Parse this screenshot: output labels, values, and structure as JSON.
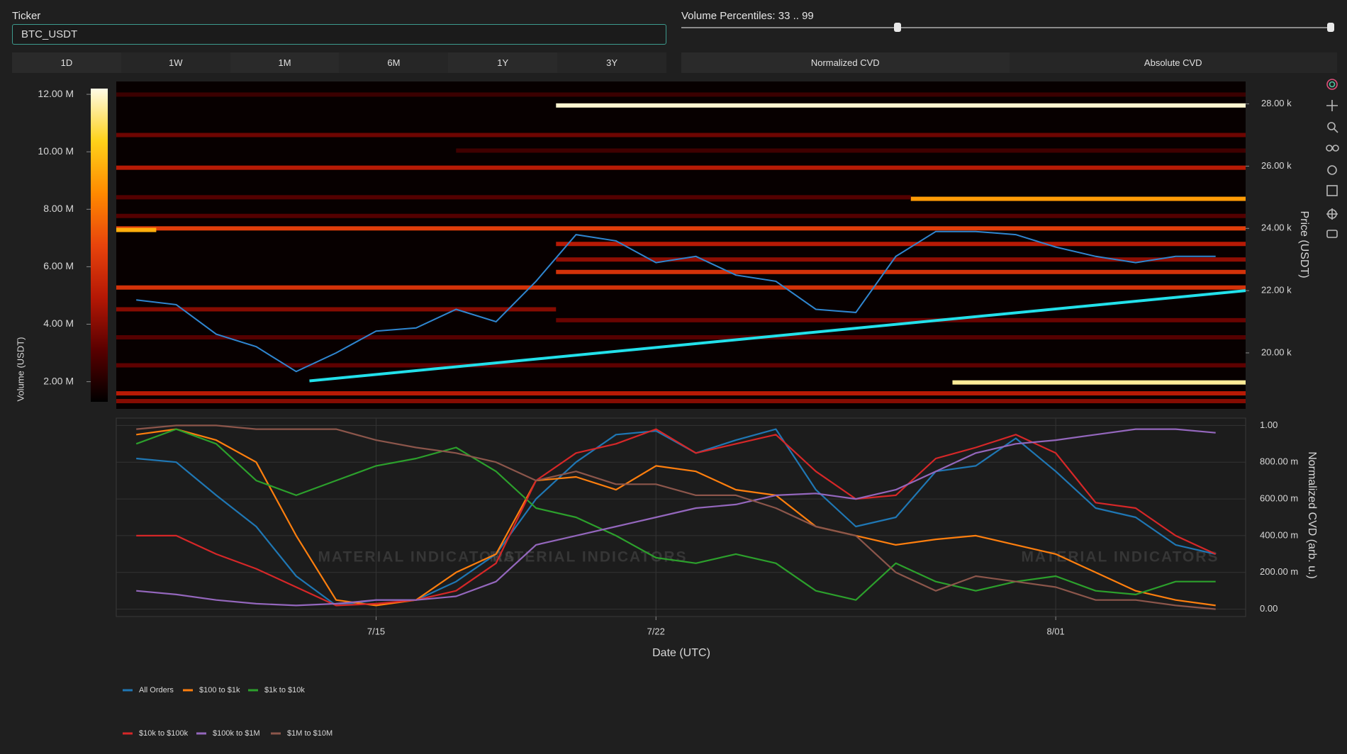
{
  "controls": {
    "ticker_label": "Ticker",
    "ticker_value": "BTC_USDT",
    "ranges": [
      "1D",
      "1W",
      "1M",
      "6M",
      "1Y",
      "3Y"
    ],
    "slider": {
      "label": "Volume Percentiles: 33 .. 99",
      "values": [
        33,
        99
      ],
      "range": [
        0,
        99
      ]
    },
    "modes": [
      "Normalized CVD",
      "Absolute CVD"
    ]
  },
  "watermark": "MATERIAL INDICATORS",
  "chart_data": [
    {
      "type": "heatmap",
      "xlim": [
        "7/08 12:00",
        "8/05 18:00"
      ],
      "ylim": [
        18200,
        28720
      ],
      "yticks": [
        {
          "value": 20000,
          "label": "20.00 k"
        },
        {
          "value": 22000,
          "label": "22.00 k"
        },
        {
          "value": 24000,
          "label": "24.00 k"
        },
        {
          "value": 26000,
          "label": "26.00 k"
        },
        {
          "value": 28000,
          "label": "28.00 k"
        }
      ],
      "y_label": "Price (USDT)",
      "colorbar": {
        "label": "Volume (USDT)",
        "lim": [
          1300000,
          12200000
        ],
        "ticks": [
          {
            "value": 2000000,
            "label": "2.00 M"
          },
          {
            "value": 4000000,
            "label": "4.00 M"
          },
          {
            "value": 6000000,
            "label": "6.00 M"
          },
          {
            "value": 8000000,
            "label": "8.00 M"
          },
          {
            "value": 10000000,
            "label": "10.00 M"
          },
          {
            "value": 12000000,
            "label": "12.00 M"
          }
        ]
      },
      "colorscale": [
        "#000000",
        "#5a0000",
        "#b51805",
        "#e8440c",
        "#ff8a00",
        "#ffd21a",
        "#fffbe6"
      ],
      "bands": [
        {
          "price": 27950,
          "from": "7/19 12:00",
          "to": "8/05 18:00",
          "volume": 12000000
        },
        {
          "price": 19050,
          "from": "7/29 10:00",
          "to": "8/05 18:00",
          "volume": 11500000
        },
        {
          "price": 24950,
          "from": "7/28 09:00",
          "to": "8/05 18:00",
          "volume": 9000000
        },
        {
          "price": 24000,
          "from": "7/08 12:00",
          "to": "8/05 18:00",
          "volume": 6500000
        },
        {
          "price": 25950,
          "from": "7/08 12:00",
          "to": "8/05 18:00",
          "volume": 5000000
        },
        {
          "price": 22100,
          "from": "7/08 12:00",
          "to": "8/05 18:00",
          "volume": 6000000
        },
        {
          "price": 21400,
          "from": "7/08 12:00",
          "to": "7/19 12:00",
          "volume": 4000000
        },
        {
          "price": 23500,
          "from": "7/19 12:00",
          "to": "8/05 18:00",
          "volume": 5000000
        },
        {
          "price": 27000,
          "from": "7/08 12:00",
          "to": "8/05 18:00",
          "volume": 3500000
        },
        {
          "price": 26500,
          "from": "7/17 00:00",
          "to": "8/05 18:00",
          "volume": 2600000
        },
        {
          "price": 20500,
          "from": "7/08 12:00",
          "to": "8/05 18:00",
          "volume": 3000000
        },
        {
          "price": 19600,
          "from": "7/08 12:00",
          "to": "8/05 18:00",
          "volume": 3200000
        },
        {
          "price": 18700,
          "from": "7/08 12:00",
          "to": "8/05 18:00",
          "volume": 5000000
        },
        {
          "price": 18450,
          "from": "7/08 12:00",
          "to": "8/05 18:00",
          "volume": 4000000
        },
        {
          "price": 25000,
          "from": "7/08 12:00",
          "to": "7/28 09:00",
          "volume": 3000000
        },
        {
          "price": 22600,
          "from": "7/19 12:00",
          "to": "8/05 18:00",
          "volume": 6000000
        },
        {
          "price": 23000,
          "from": "7/19 12:00",
          "to": "8/05 18:00",
          "volume": 4200000
        },
        {
          "price": 28300,
          "from": "7/08 12:00",
          "to": "8/05 18:00",
          "volume": 2500000
        },
        {
          "price": 24400,
          "from": "7/08 12:00",
          "to": "8/05 18:00",
          "volume": 3000000
        },
        {
          "price": 23950,
          "from": "7/08 12:00",
          "to": "7/09 12:00",
          "volume": 9500000
        },
        {
          "price": 21050,
          "from": "7/19 12:00",
          "to": "8/05 18:00",
          "volume": 3400000
        }
      ],
      "price": {
        "color": "#2f86d0",
        "x": [
          "7/09",
          "7/10",
          "7/11",
          "7/12",
          "7/13",
          "7/14",
          "7/15",
          "7/16",
          "7/17",
          "7/18",
          "7/19",
          "7/20",
          "7/21",
          "7/22",
          "7/23",
          "7/24",
          "7/25",
          "7/26",
          "7/27",
          "7/28",
          "7/29",
          "7/30",
          "7/31",
          "8/01",
          "8/02",
          "8/03",
          "8/04",
          "8/05"
        ],
        "values": [
          21700,
          21550,
          20600,
          20200,
          19400,
          20000,
          20700,
          20800,
          21400,
          21000,
          22300,
          23800,
          23600,
          22900,
          23100,
          22500,
          22300,
          21400,
          21300,
          23100,
          23900,
          23900,
          23800,
          23400,
          23100,
          22900,
          23100,
          23100
        ]
      },
      "trend": {
        "color": "#22e0ea",
        "x": [
          "7/13 08:00",
          "8/05 18:00"
        ],
        "values": [
          19100,
          22000
        ]
      }
    },
    {
      "type": "line",
      "x": [
        "7/09",
        "7/10",
        "7/11",
        "7/12",
        "7/13",
        "7/14",
        "7/15",
        "7/16",
        "7/17",
        "7/18",
        "7/19",
        "7/20",
        "7/21",
        "7/22",
        "7/23",
        "7/24",
        "7/25",
        "7/26",
        "7/27",
        "7/28",
        "7/29",
        "7/30",
        "7/31",
        "8/01",
        "8/02",
        "8/03",
        "8/04",
        "8/05"
      ],
      "xlim": [
        "7/08 12:00",
        "8/05 18:00"
      ],
      "xticks": [
        "7/15",
        "7/22",
        "8/01"
      ],
      "x_label": "Date (UTC)",
      "ylim": [
        -0.04,
        1.04
      ],
      "yticks": [
        {
          "value": 0,
          "label": "0.00"
        },
        {
          "value": 0.2,
          "label": "200.00 m"
        },
        {
          "value": 0.4,
          "label": "400.00 m"
        },
        {
          "value": 0.6,
          "label": "600.00 m"
        },
        {
          "value": 0.8,
          "label": "800.00 m"
        },
        {
          "value": 1,
          "label": "1.00"
        }
      ],
      "y_label": "Normalized CVD (arb. u.)",
      "grid": true,
      "legend": "bottom-left",
      "series": [
        {
          "name": "All Orders",
          "color": "#1f77b4",
          "values": [
            0.82,
            0.8,
            0.62,
            0.45,
            0.18,
            0.02,
            0.05,
            0.05,
            0.15,
            0.3,
            0.6,
            0.8,
            0.95,
            0.97,
            0.85,
            0.92,
            0.98,
            0.65,
            0.45,
            0.5,
            0.75,
            0.78,
            0.93,
            0.75,
            0.55,
            0.5,
            0.35,
            0.3
          ]
        },
        {
          "name": "$100 to $1k",
          "color": "#ff7f0e",
          "values": [
            0.95,
            0.98,
            0.92,
            0.8,
            0.4,
            0.05,
            0.02,
            0.05,
            0.2,
            0.3,
            0.7,
            0.72,
            0.65,
            0.78,
            0.75,
            0.65,
            0.62,
            0.45,
            0.4,
            0.35,
            0.38,
            0.4,
            0.35,
            0.3,
            0.2,
            0.1,
            0.05,
            0.02
          ]
        },
        {
          "name": "$1k to $10k",
          "color": "#2ca02c",
          "values": [
            0.9,
            0.98,
            0.9,
            0.7,
            0.62,
            0.7,
            0.78,
            0.82,
            0.88,
            0.75,
            0.55,
            0.5,
            0.4,
            0.28,
            0.25,
            0.3,
            0.25,
            0.1,
            0.05,
            0.25,
            0.15,
            0.1,
            0.15,
            0.18,
            0.1,
            0.08,
            0.15,
            0.15
          ]
        },
        {
          "name": "$10k to $100k",
          "color": "#d62728",
          "values": [
            0.4,
            0.4,
            0.3,
            0.22,
            0.12,
            0.02,
            0.03,
            0.05,
            0.1,
            0.25,
            0.7,
            0.85,
            0.9,
            0.98,
            0.85,
            0.9,
            0.95,
            0.75,
            0.6,
            0.62,
            0.82,
            0.88,
            0.95,
            0.85,
            0.58,
            0.55,
            0.4,
            0.3
          ]
        },
        {
          "name": "$100k to $1M",
          "color": "#9467bd",
          "values": [
            0.1,
            0.08,
            0.05,
            0.03,
            0.02,
            0.03,
            0.05,
            0.05,
            0.07,
            0.15,
            0.35,
            0.4,
            0.45,
            0.5,
            0.55,
            0.57,
            0.62,
            0.63,
            0.6,
            0.65,
            0.75,
            0.85,
            0.9,
            0.92,
            0.95,
            0.98,
            0.98,
            0.96
          ]
        },
        {
          "name": "$1M to $10M",
          "color": "#8c564b",
          "values": [
            0.98,
            1.0,
            1.0,
            0.98,
            0.98,
            0.98,
            0.92,
            0.88,
            0.85,
            0.8,
            0.7,
            0.75,
            0.68,
            0.68,
            0.62,
            0.62,
            0.55,
            0.45,
            0.4,
            0.2,
            0.1,
            0.18,
            0.15,
            0.12,
            0.05,
            0.05,
            0.02,
            0.0
          ]
        }
      ]
    }
  ]
}
